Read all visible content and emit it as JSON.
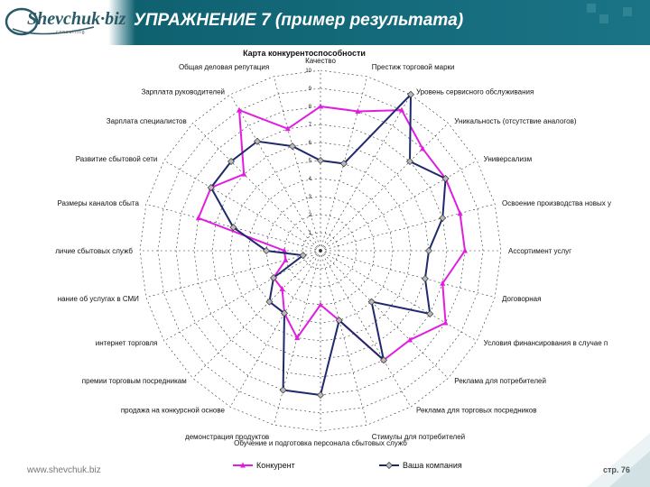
{
  "slide": {
    "logo_text": "Shevchuk·biz",
    "logo_sub": "consulting",
    "title": "УПРАЖНЕНИЕ 7 (пример результата)",
    "url": "www.shevchuk.biz",
    "page": "стр. 76"
  },
  "colors": {
    "competitor": "#e01ee0",
    "company": "#1f2a6e",
    "header": "#0f6170"
  },
  "chart_data": {
    "type": "radar",
    "title": "Карта конкурентоспособности",
    "rmin": 0,
    "rmax": 10,
    "ticks": [
      "1",
      "2",
      "3",
      "4",
      "5",
      "6",
      "7",
      "8",
      "9",
      "10"
    ],
    "categories": [
      "Качество",
      "Престиж торговой марки",
      "Уровень сервисного обслуживания",
      "Уникальность (отсутствие аналогов)",
      "Универсализм",
      "Освоение производства новых у",
      "Ассортимент услуг",
      "Договорная",
      "Условия финансирования в случае п",
      "Реклама для потребителей",
      "Реклама для торговых посредников",
      "Стимулы для потребителей",
      "Обучение и подготовка персонала сбытовых служб",
      "демонстрация продуктов",
      "продажа на конкурсной основе",
      "премии торговым посредникам",
      "интернет торговля",
      "нание об услугах в СМИ",
      "личие сбытовых служб",
      "Размеры каналов сбыта",
      "Развитие сбытовой сети",
      "Зарплата специалистов",
      "Зарплата руководителей",
      "Общая деловая репутация"
    ],
    "series": [
      {
        "name": "Конкурент",
        "values": [
          8,
          8,
          9,
          8,
          8,
          8,
          8,
          7,
          8,
          7,
          7,
          4,
          3,
          5,
          4,
          3,
          3,
          2,
          2,
          7,
          7,
          6,
          9,
          7
        ]
      },
      {
        "name": "Ваша компания",
        "values": [
          5,
          5,
          10,
          7,
          8,
          7,
          6,
          6,
          7,
          4,
          7,
          4,
          8,
          8,
          4,
          4,
          3,
          1,
          3,
          5,
          7,
          7,
          7,
          6
        ]
      }
    ],
    "legend": "bottom"
  }
}
